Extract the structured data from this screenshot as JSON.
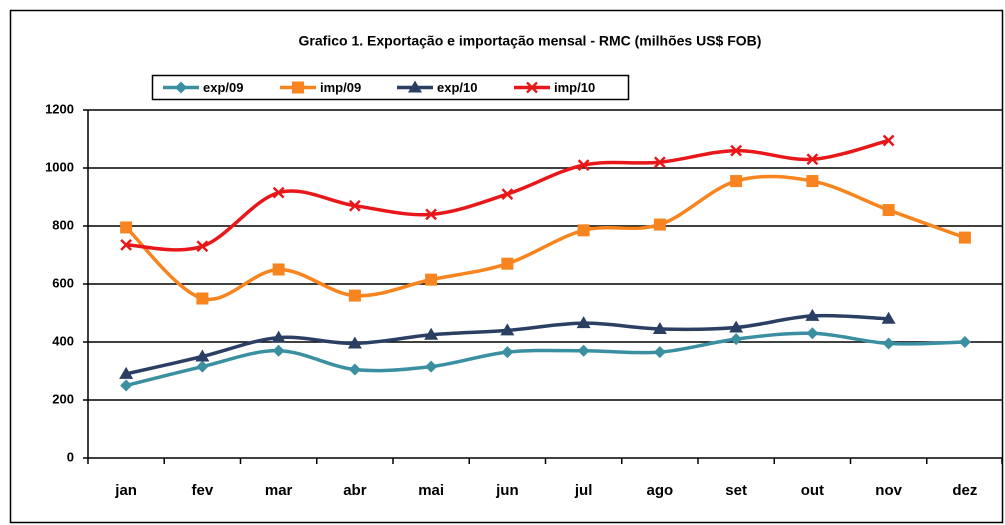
{
  "chart_data": {
    "type": "line",
    "title": "Grafico 1. Exportação e importação mensal - RMC (milhões US$ FOB)",
    "categories": [
      "jan",
      "fev",
      "mar",
      "abr",
      "mai",
      "jun",
      "jul",
      "ago",
      "set",
      "out",
      "nov",
      "dez"
    ],
    "series": [
      {
        "name": "exp/09",
        "color": "#3a8fa0",
        "marker": "diamond",
        "values": [
          250,
          315,
          370,
          305,
          315,
          365,
          370,
          365,
          410,
          430,
          395,
          400
        ]
      },
      {
        "name": "imp/09",
        "color": "#f7841e",
        "marker": "square",
        "values": [
          795,
          550,
          650,
          560,
          615,
          670,
          785,
          805,
          955,
          955,
          855,
          760
        ]
      },
      {
        "name": "exp/10",
        "color": "#2b3f63",
        "marker": "triangle",
        "values": [
          290,
          350,
          415,
          395,
          425,
          440,
          465,
          445,
          450,
          490,
          480,
          null
        ]
      },
      {
        "name": "imp/10",
        "color": "#e8171a",
        "marker": "cross",
        "values": [
          735,
          730,
          915,
          870,
          840,
          910,
          1010,
          1020,
          1060,
          1030,
          1095,
          null
        ]
      }
    ],
    "ylim": [
      0,
      1200
    ],
    "yticks": [
      0,
      200,
      400,
      600,
      800,
      1000,
      1200
    ],
    "grid": true,
    "smooth": true
  }
}
